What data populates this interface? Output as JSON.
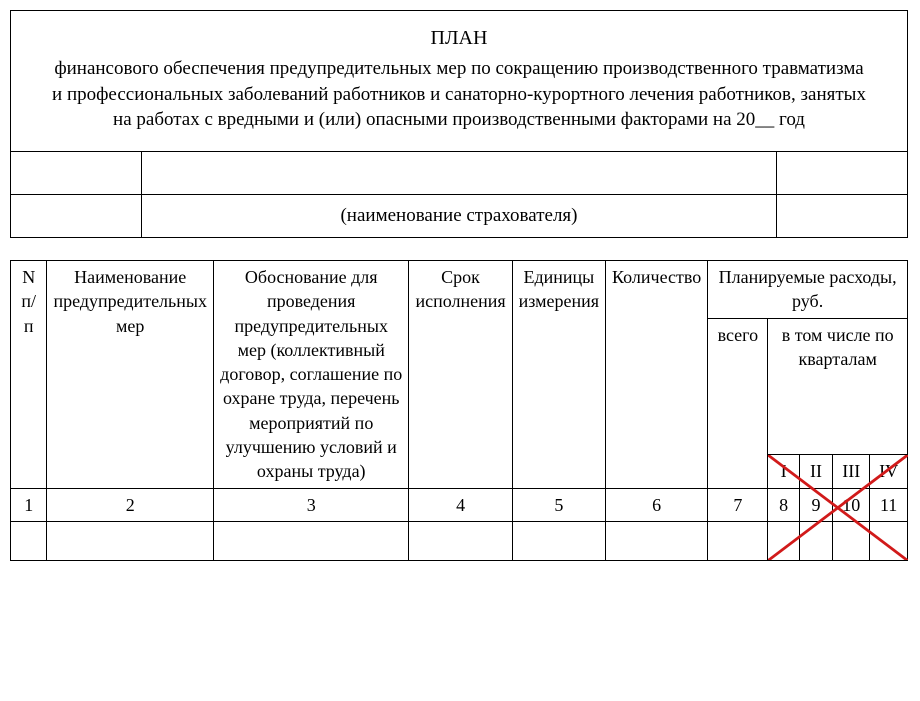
{
  "header": {
    "title": "ПЛАН",
    "paragraph": "финансового обеспечения предупредительных мер по сокращению производственного травматизма и профессиональных заболеваний работников и санаторно-курортного лечения работников, занятых на работах с вредными и (или) опасными производственными факторами на 20__ год",
    "insurer_label": "(наименование страхователя)"
  },
  "columns": {
    "c1": "N п/п",
    "c2": "Наименование предупредительных мер",
    "c3": "Обоснование для проведения предупредительных мер (коллективный договор, соглашение по охране труда, перечень мероприятий по улучшению условий и охраны труда)",
    "c4": "Срок исполнения",
    "c5": "Единицы измерения",
    "c6": "Количество",
    "planned_header": "Планируемые расходы, руб.",
    "total": "всего",
    "by_quarter": "в том числе по кварталам",
    "q1": "I",
    "q2": "II",
    "q3": "III",
    "q4": "IV"
  },
  "number_row": {
    "n1": "1",
    "n2": "2",
    "n3": "3",
    "n4": "4",
    "n5": "5",
    "n6": "6",
    "n7": "7",
    "n8": "8",
    "n9": "9",
    "n10": "10",
    "n11": "11"
  },
  "annotation": {
    "cross_color": "#d11a1a",
    "cross_stroke_width": 2.8
  }
}
